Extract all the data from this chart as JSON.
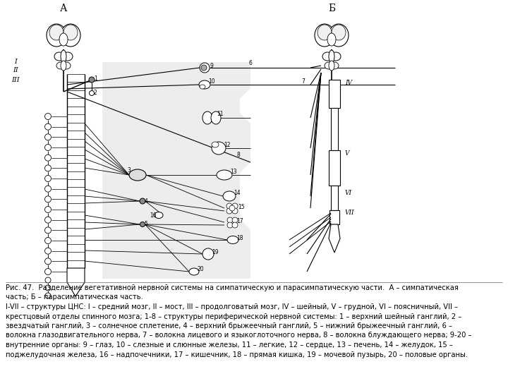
{
  "caption_line1": "Рис. 47.  Разделение вегетативной нервной системы на симпатическую и парасимпатическую части.  А – симпатическая",
  "caption_line2": "часть; Б – парасимпатическая часть.",
  "caption_line3": "I-VII – структуры ЦНС: I – средний мозг, II – мост, III – продолговатый мозг, IV – шейный, V – грудной, VI – поясничный, VII –",
  "caption_line4": "крестцовый отделы спинного мозга; 1-8 – структуры периферической нервной системы: 1 – верхний шейный ганглий, 2 –",
  "caption_line5": "звездчатый ганглий, 3 – солнечное сплетение, 4 – верхний брыжеечный ганглий, 5 – нижний брыжеечный ганглий, 6 –",
  "caption_line6": "волокна глазодвигательного нерва, 7 – волокна лицевого и языкоглоточного нерва, 8 – волокна блуждающего нерва; 9-20 –",
  "caption_line7": "внутренние органы: 9 – глаз, 10 – слезные и слюнные железы, 11 – легкие, 12 – сердце, 13 – печень, 14 – желудок, 15 –",
  "caption_line8": "поджелудочная железа, 16 – надпочечники, 17 – кишечник, 18 – прямая кишка, 19 – мочевой пузырь, 20 – половые органы.",
  "bg_color": "#ffffff",
  "text_color": "#000000",
  "line_color": "#000000",
  "shaded_color": "#cccccc",
  "figure_width": 7.2,
  "figure_height": 5.4,
  "dpi": 100,
  "label_A": "А",
  "label_B": "Б",
  "label_I": "I",
  "label_II": "II",
  "label_III": "III",
  "label_IV": "IV",
  "label_V": "V",
  "label_VI": "VI",
  "label_VII": "VII"
}
